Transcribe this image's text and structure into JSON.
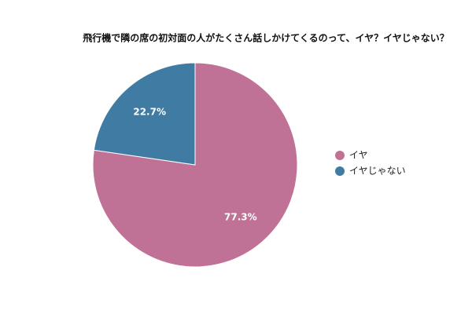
{
  "chart_data": {
    "type": "pie",
    "title": "飛行機で隣の席の初対面の人がたくさん話しかけてくるのって、イヤ？イヤじゃない？",
    "categories": [
      "イヤ",
      "イヤじゃない"
    ],
    "values": [
      77.3,
      22.7
    ],
    "value_labels": [
      "77.3%",
      "22.7%"
    ],
    "colors": [
      "#c07296",
      "#3f7ba3"
    ],
    "legend": "right"
  }
}
